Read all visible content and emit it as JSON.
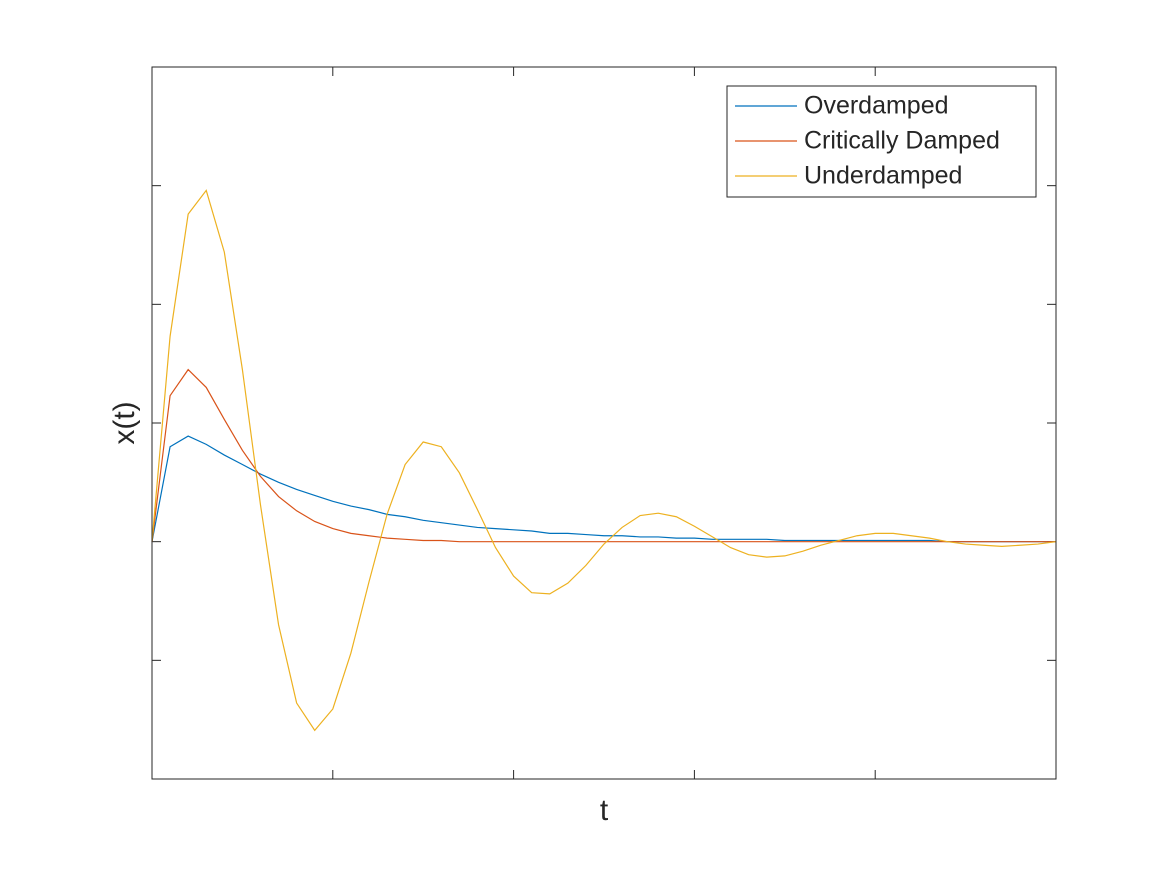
{
  "chart_data": {
    "type": "line",
    "xlabel": "t",
    "ylabel": "x(t)",
    "x": [
      0,
      0.1,
      0.2,
      0.3,
      0.4,
      0.5,
      0.6,
      0.7,
      0.8,
      0.9,
      1,
      1.1,
      1.2,
      1.3,
      1.4,
      1.5,
      1.6,
      1.7,
      1.8,
      1.9,
      2,
      2.1,
      2.2,
      2.3,
      2.4,
      2.5,
      2.6,
      2.7,
      2.8,
      2.9,
      3,
      3.1,
      3.2,
      3.3,
      3.4,
      3.5,
      3.6,
      3.7,
      3.8,
      3.9,
      4,
      4.1,
      4.2,
      4.3,
      4.4,
      4.5,
      4.6,
      4.7,
      4.8,
      4.9,
      5
    ],
    "series": [
      {
        "name": "Overdamped",
        "color": "#0072BD",
        "values": [
          0,
          0.8,
          0.89,
          0.82,
          0.73,
          0.65,
          0.57,
          0.5,
          0.44,
          0.39,
          0.34,
          0.3,
          0.27,
          0.23,
          0.21,
          0.18,
          0.16,
          0.14,
          0.12,
          0.11,
          0.1,
          0.09,
          0.07,
          0.07,
          0.06,
          0.05,
          0.05,
          0.04,
          0.04,
          0.03,
          0.03,
          0.02,
          0.02,
          0.02,
          0.02,
          0.01,
          0.01,
          0.01,
          0.01,
          0.01,
          0.01,
          0.01,
          0.01,
          0.01,
          0,
          0,
          0,
          0,
          0,
          0,
          0
        ]
      },
      {
        "name": "Critically Damped",
        "color": "#D95319",
        "values": [
          0,
          1.23,
          1.45,
          1.3,
          1.03,
          0.77,
          0.55,
          0.38,
          0.26,
          0.17,
          0.11,
          0.07,
          0.05,
          0.03,
          0.02,
          0.01,
          0.01,
          0,
          0,
          0,
          0,
          0,
          0,
          0,
          0,
          0,
          0,
          0,
          0,
          0,
          0,
          0,
          0,
          0,
          0,
          0,
          0,
          0,
          0,
          0,
          0,
          0,
          0,
          0,
          0,
          0,
          0,
          0,
          0,
          0,
          0
        ]
      },
      {
        "name": "Underdamped",
        "color": "#EDB120",
        "values": [
          0,
          1.73,
          2.76,
          2.96,
          2.44,
          1.45,
          0.31,
          -0.7,
          -1.36,
          -1.59,
          -1.41,
          -0.94,
          -0.34,
          0.23,
          0.65,
          0.84,
          0.8,
          0.58,
          0.27,
          -0.05,
          -0.29,
          -0.43,
          -0.44,
          -0.35,
          -0.2,
          -0.02,
          0.12,
          0.22,
          0.24,
          0.21,
          0.13,
          0.04,
          -0.05,
          -0.11,
          -0.13,
          -0.12,
          -0.08,
          -0.03,
          0.01,
          0.05,
          0.07,
          0.07,
          0.05,
          0.03,
          0,
          -0.02,
          -0.03,
          -0.04,
          -0.03,
          -0.02,
          0
        ]
      }
    ],
    "xlim": [
      0,
      5
    ],
    "xticks": [
      1,
      2,
      3,
      4
    ],
    "ylim": [
      -2,
      4
    ],
    "yticks": [
      -1,
      0,
      1,
      2,
      3
    ],
    "grid": false,
    "box": true,
    "legend": "northeast"
  }
}
